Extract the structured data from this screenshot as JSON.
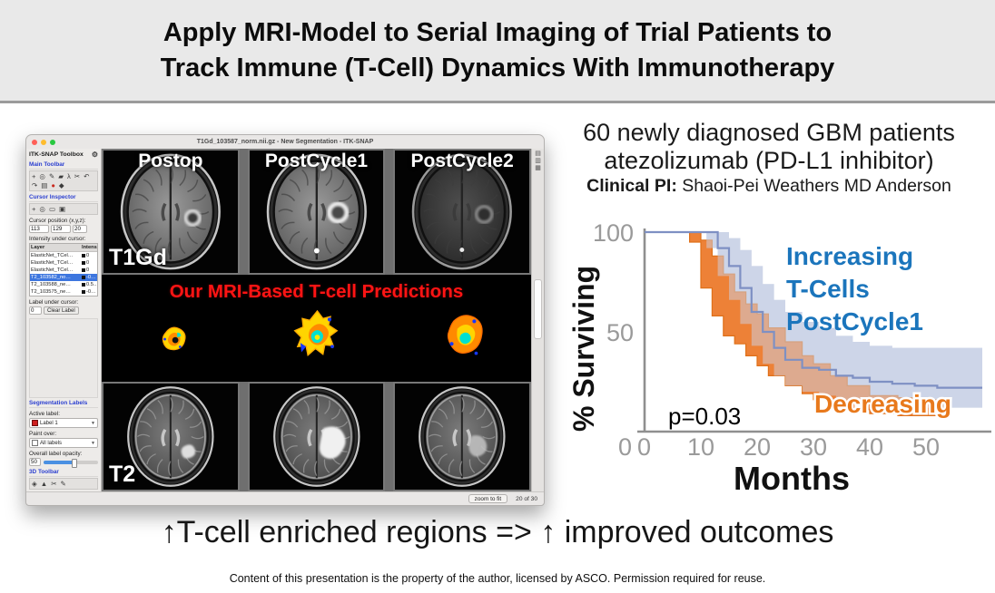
{
  "slide": {
    "title_line1": "Apply MRI-Model to Serial Imaging of Trial Patients to",
    "title_line2": "Track Immune (T-Cell) Dynamics With Immunotherapy",
    "takeaway": "↑T-cell enriched regions => ↑ improved outcomes",
    "footer": "Content of this presentation is the property of the author, licensed by ASCO. Permission required for reuse."
  },
  "itk_window": {
    "window_title": "T1Gd_103587_norm.nii.gz - New Segmentation - ITK-SNAP",
    "status_bar": {
      "zoom_button": "zoom to fit",
      "page_indicator": "20 of 30"
    },
    "toolbox": {
      "title": "ITK-SNAP Toolbox",
      "main_toolbar_label": "Main Toolbar",
      "cursor_inspector_label": "Cursor Inspector",
      "cursor_position_label": "Cursor position (x,y,z):",
      "cursor_x": "113",
      "cursor_y": "129",
      "cursor_z": "20",
      "intensity_label": "Intensity under cursor:",
      "intensity_table": {
        "columns": [
          "Layer",
          "Intensity"
        ],
        "rows": [
          {
            "layer": "ElasticNet_TCel…",
            "intensity": "0",
            "selected": false
          },
          {
            "layer": "ElasticNet_TCel…",
            "intensity": "0",
            "selected": false
          },
          {
            "layer": "ElasticNet_TCel…",
            "intensity": "0",
            "selected": false
          },
          {
            "layer": "T2_103582_no…",
            "intensity": "-0…",
            "selected": true
          },
          {
            "layer": "T2_103588_ne…",
            "intensity": "0.5…",
            "selected": false
          },
          {
            "layer": "T2_103575_ne…",
            "intensity": "-0…",
            "selected": false
          }
        ]
      },
      "label_under_cursor_label": "Label under cursor:",
      "label_under_cursor_value": "0",
      "clear_label_button": "Clear Label",
      "segmentation_labels_label": "Segmentation Labels",
      "active_label_label": "Active label:",
      "active_label_value": "Label 1",
      "paint_over_label": "Paint over:",
      "paint_over_value": "All labels",
      "opacity_label": "Overall label opacity:",
      "opacity_value": "50",
      "toolbar_3d_label": "3D Toolbar"
    },
    "viewer": {
      "panel_labels": [
        "Postop",
        "PostCycle1",
        "PostCycle2"
      ],
      "row_top_label": "T1Gd",
      "row_bottom_label": "T2",
      "caption": "Our MRI-Based T-cell Predictions"
    }
  },
  "icons": {
    "gear": "⚙",
    "main_toolbar_row1": [
      {
        "name": "crosshair-tool-icon",
        "glyph": "+"
      },
      {
        "name": "magnifier-tool-icon",
        "glyph": "◎"
      },
      {
        "name": "polygon-tool-icon",
        "glyph": "✎"
      },
      {
        "name": "paintbrush-tool-icon",
        "glyph": "▰"
      },
      {
        "name": "snake-tool-icon",
        "glyph": "λ"
      },
      {
        "name": "annotation-tool-icon",
        "glyph": "✂"
      }
    ],
    "main_toolbar_row2": [
      {
        "name": "undo-icon",
        "glyph": "↶"
      },
      {
        "name": "redo-icon",
        "glyph": "↷"
      },
      {
        "name": "layers-icon",
        "glyph": "▤"
      },
      {
        "name": "record-icon",
        "glyph": "●",
        "red": true
      },
      {
        "name": "volume-icon",
        "glyph": "◆"
      }
    ],
    "cursor_inspector_row": [
      {
        "name": "crosshair-icon",
        "glyph": "+"
      },
      {
        "name": "magnifier-icon",
        "glyph": "◎"
      },
      {
        "name": "ruler-icon",
        "glyph": "▭"
      },
      {
        "name": "grid-icon",
        "glyph": "▣"
      }
    ],
    "toolbar_3d_row": [
      {
        "name": "trackball-icon",
        "glyph": "◈"
      },
      {
        "name": "spray-icon",
        "glyph": "▲"
      },
      {
        "name": "scalpel-icon",
        "glyph": "✂"
      },
      {
        "name": "flip-icon",
        "glyph": "✎"
      }
    ],
    "view_layout_icons": [
      {
        "name": "layout-axial-icon",
        "glyph": "▤"
      },
      {
        "name": "layout-coronal-icon",
        "glyph": "▥"
      },
      {
        "name": "layout-sagittal-icon",
        "glyph": "▦"
      }
    ]
  },
  "right_panel": {
    "heading_line1": "60 newly diagnosed GBM patients",
    "heading_line2": "atezolizumab (PD-L1 inhibitor)",
    "heading_line3_bold": "Clinical PI:",
    "heading_line3_rest": " Shaoi-Pei Weathers MD Anderson"
  },
  "chart_data": {
    "type": "line",
    "subtype": "kaplan-meier-survival",
    "title": "",
    "xlabel": "Months",
    "ylabel": "% Surviving",
    "xlim": [
      0,
      60
    ],
    "ylim": [
      0,
      100
    ],
    "x_ticks": [
      0,
      10,
      20,
      30,
      40,
      50
    ],
    "y_ticks": [
      0,
      50,
      100
    ],
    "grid": false,
    "legend_position": "annotated-on-plot",
    "annotations": {
      "p_value": "p=0.03",
      "increasing_label_lines": [
        "Increasing",
        "T-Cells",
        "PostCycle1"
      ],
      "decreasing_label": "Decreasing"
    },
    "colors": {
      "increasing_band": "#cdd5e8",
      "increasing_band_overlay": "rgba(205,213,232,0.5)",
      "increasing_line": "#7e90c3",
      "increasing_text": "#1b75bc",
      "decreasing": "#ed7d31",
      "decreasing_edge": "#de6c12",
      "decreasing_text": "#e8791c",
      "axis": "#8f8f8f",
      "tick_text": "#9a9a9a"
    },
    "series": [
      {
        "name": "Increasing T-Cells PostCycle1",
        "x": [
          0,
          11,
          13,
          15,
          17,
          19,
          21,
          23,
          25,
          28,
          31,
          34,
          37,
          40,
          44,
          48,
          52,
          57,
          60
        ],
        "y": [
          100,
          100,
          92,
          83,
          72,
          60,
          50,
          42,
          36,
          32,
          31,
          28,
          27,
          25,
          24,
          23,
          22,
          22,
          22
        ],
        "upper": [
          100,
          100,
          100,
          97,
          91,
          83,
          74,
          66,
          60,
          55,
          52,
          48,
          45,
          43,
          42,
          42,
          42,
          42,
          42
        ],
        "lower": [
          100,
          92,
          78,
          66,
          54,
          43,
          34,
          28,
          23,
          20,
          18,
          16,
          15,
          14,
          13,
          12,
          12,
          12,
          12
        ]
      },
      {
        "name": "Decreasing T-Cells",
        "x": [
          0,
          8,
          10,
          12,
          14,
          16,
          18,
          20,
          22,
          25,
          28,
          30,
          33,
          36,
          40,
          45,
          50,
          53
        ],
        "y": [
          100,
          100,
          88,
          76,
          66,
          57,
          51,
          46,
          40,
          34,
          28,
          25,
          20,
          17,
          13,
          12,
          11,
          9
        ],
        "upper": [
          100,
          100,
          96,
          88,
          79,
          70,
          64,
          59,
          52,
          45,
          38,
          34,
          28,
          23,
          18,
          17,
          16,
          13
        ],
        "lower": [
          100,
          95,
          72,
          58,
          48,
          44,
          38,
          33,
          28,
          23,
          19,
          16,
          13,
          11,
          9,
          8,
          8,
          6
        ]
      }
    ]
  }
}
